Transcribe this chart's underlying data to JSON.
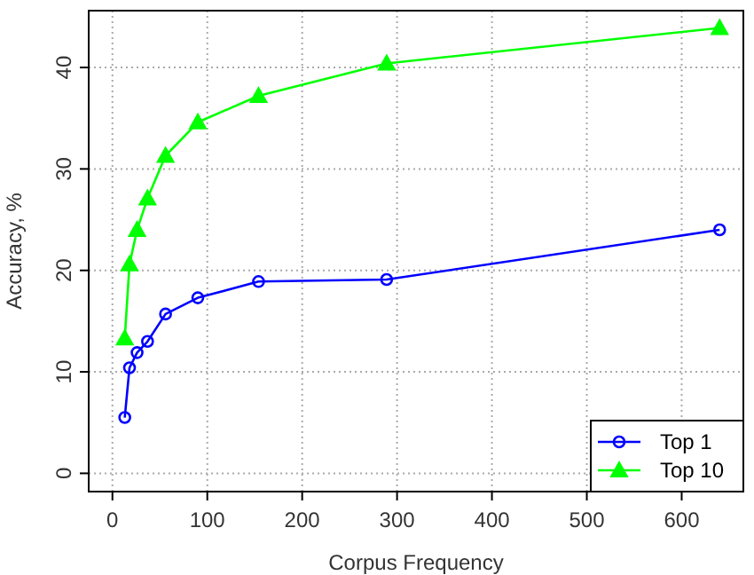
{
  "chart_data": {
    "type": "line",
    "xlabel": "Corpus Frequency",
    "ylabel": "Accuracy, %",
    "x": [
      13,
      18,
      26,
      37,
      56,
      90,
      154,
      289,
      640
    ],
    "series": [
      {
        "name": "Top 1",
        "color": "#0000ff",
        "marker": "circle",
        "values": [
          5.5,
          10.4,
          11.9,
          13.0,
          15.7,
          17.3,
          18.9,
          19.1,
          24.0
        ]
      },
      {
        "name": "Top 10",
        "color": "#00ff00",
        "marker": "triangle",
        "values": [
          13.3,
          20.6,
          24.0,
          27.1,
          31.3,
          34.6,
          37.2,
          40.4,
          43.9
        ]
      }
    ],
    "xlim": [
      -25,
      665
    ],
    "ylim": [
      -1.8,
      45.6
    ],
    "xticks": [
      0,
      100,
      200,
      300,
      400,
      500,
      600
    ],
    "yticks": [
      0,
      10,
      20,
      30,
      40
    ],
    "grid": true,
    "legend": "bottom right",
    "line_style": "solid"
  }
}
